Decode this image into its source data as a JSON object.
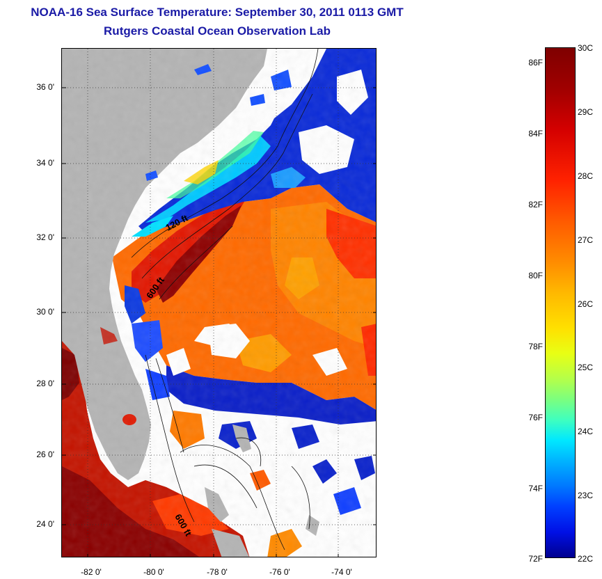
{
  "title": {
    "line1": "NOAA-16 Sea Surface Temperature:  September 30, 2011 0113 GMT",
    "line2": "Rutgers Coastal Ocean Observation Lab"
  },
  "map": {
    "type": "sea surface temperature satellite image",
    "region": "US Southeast Atlantic coast",
    "lat_labels": [
      "36 0'",
      "34 0'",
      "32 0'",
      "30 0'",
      "28 0'",
      "26 0'",
      "24 0'"
    ],
    "lon_labels": [
      "-82 0'",
      "-80 0'",
      "-78 0'",
      "-76 0'",
      "-74 0'"
    ],
    "contour_labels": [
      "120 ft",
      "600 ft",
      "600 ft"
    ],
    "colors": {
      "land": "#b4b4b4",
      "cloud": "#ffffff"
    }
  },
  "colorbar": {
    "celsius_labels": [
      "30C",
      "29C",
      "28C",
      "27C",
      "26C",
      "25C",
      "24C",
      "23C",
      "22C"
    ],
    "fahrenheit_labels": [
      "86F",
      "84F",
      "82F",
      "80F",
      "78F",
      "76F",
      "74F",
      "72F"
    ],
    "range_c": [
      22,
      30
    ],
    "colormap": "jet",
    "stops": [
      "#00008f",
      "#0040ff",
      "#00b4ff",
      "#3fffbf",
      "#e8ff14",
      "#ffb800",
      "#ff5a00",
      "#d40000",
      "#7f0000"
    ]
  }
}
